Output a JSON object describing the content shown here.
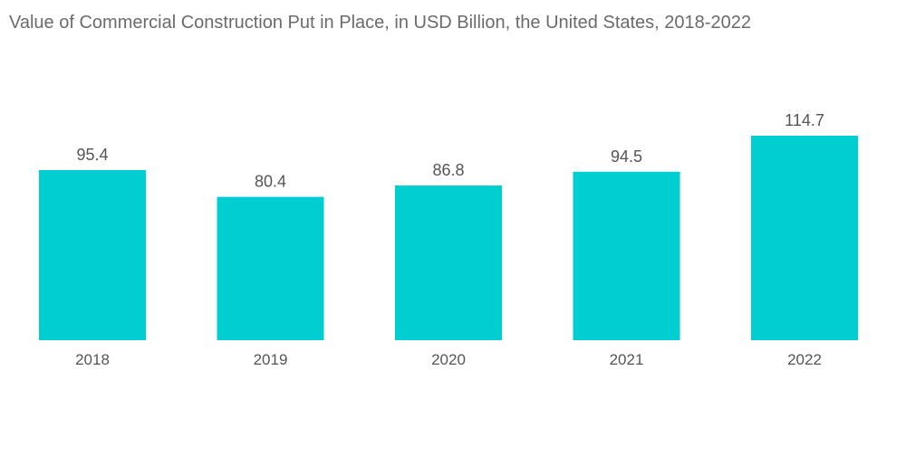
{
  "chart_data": {
    "type": "bar",
    "title": "Value of Commercial Construction Put in Place, in USD Billion, the United States, 2018-2022",
    "categories": [
      "2018",
      "2019",
      "2020",
      "2021",
      "2022"
    ],
    "values": [
      95.4,
      80.4,
      86.8,
      94.5,
      114.7
    ],
    "xlabel": "",
    "ylabel": "",
    "ylim": [
      0,
      114.7
    ],
    "grid": false,
    "legend": "none",
    "bar_color": "#00ced1",
    "text_color": "#555555",
    "title_color": "#6b6b6b"
  }
}
